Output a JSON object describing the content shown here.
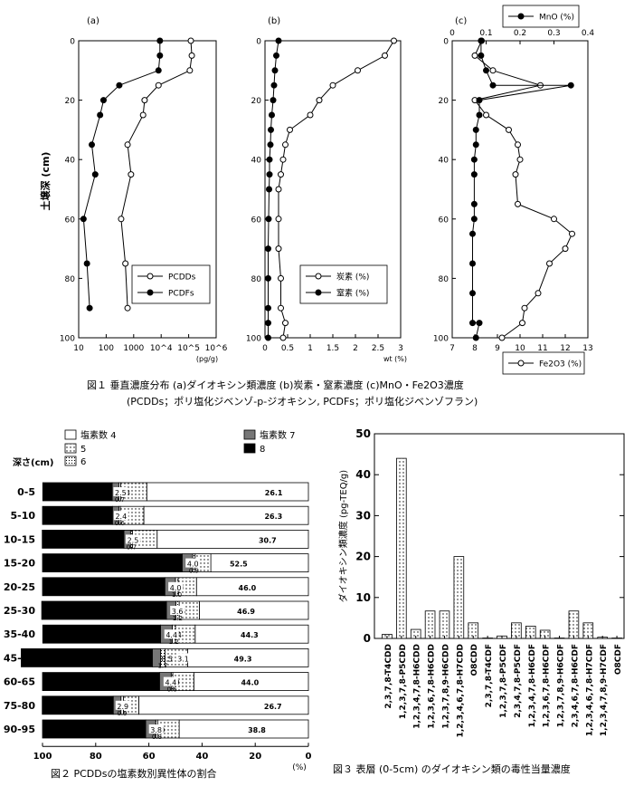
{
  "fig1": {
    "caption": "図１ 垂直濃度分布 (a)ダイオキシン類濃度 (b)炭素・窒素濃度 (c)MnO・Fe2O3濃度",
    "caption2": "(PCDDs；ポリ塩化ジベンゾ-p-ジオキシン, PCDFs；ポリ塩化ジベンゾフラン)",
    "ylabel": "土壌深 (cm)",
    "depth_ticks": [
      "0",
      "20",
      "40",
      "60",
      "80",
      "100"
    ],
    "panel_a": {
      "label": "(a)",
      "xunit": "(pg/g)"
    },
    "panel_b": {
      "label": "(b)",
      "xunit": "wt (%)"
    },
    "panel_c": {
      "label": "(c)"
    }
  },
  "fig2": {
    "caption": "図２ PCDDsの塩素数別異性体の割合",
    "depth_header": "深さ(cm)",
    "pct_unit": "(%)",
    "legend": [
      {
        "key": "cl4",
        "label": "塩素数 4"
      },
      {
        "key": "cl5",
        "label": "5"
      },
      {
        "key": "cl6",
        "label": "6"
      },
      {
        "key": "cl7",
        "label": "塩素数 7"
      },
      {
        "key": "cl8",
        "label": "8"
      }
    ]
  },
  "fig3": {
    "caption": "図３ 表層 (0-5cm) のダイオキシン類の毒性当量濃度",
    "ylabel": "ダイオキシン類濃度 (pg-TEQ/g)"
  },
  "chart_data": [
    {
      "type": "line",
      "id": "fig1a",
      "xscale": "log",
      "xlim": [
        10,
        1000000
      ],
      "xticks": [
        10,
        100,
        1000,
        10000,
        100000,
        1000000
      ],
      "xticklabels": [
        "10",
        "100",
        "1000",
        "10^4",
        "10^5",
        "10^6"
      ],
      "ylim": [
        0,
        100
      ],
      "yinverted": true,
      "xlabel": "(pg/g)",
      "ylabel": "土壌深 (cm)",
      "legend_position": "bottom-right",
      "series": [
        {
          "name": "PCDDs",
          "marker": "open",
          "points": [
            [
              120000,
              0
            ],
            [
              130000,
              5
            ],
            [
              110000,
              10
            ],
            [
              8000,
              15
            ],
            [
              2500,
              20
            ],
            [
              2200,
              25
            ],
            [
              600,
              35
            ],
            [
              800,
              45
            ],
            [
              350,
              60
            ],
            [
              500,
              75
            ],
            [
              600,
              90
            ]
          ]
        },
        {
          "name": "PCDFs",
          "marker": "filled",
          "points": [
            [
              9000,
              0
            ],
            [
              9000,
              5
            ],
            [
              8000,
              10
            ],
            [
              300,
              15
            ],
            [
              80,
              20
            ],
            [
              60,
              25
            ],
            [
              30,
              35
            ],
            [
              40,
              45
            ],
            [
              15,
              60
            ],
            [
              20,
              75
            ],
            [
              25,
              90
            ]
          ]
        }
      ]
    },
    {
      "type": "line",
      "id": "fig1b",
      "xlim": [
        0,
        3
      ],
      "xticks": [
        0,
        0.5,
        1,
        1.5,
        2,
        2.5,
        3
      ],
      "xticklabels": [
        "0",
        "0.5",
        "1",
        "1.5",
        "2",
        "2.5",
        "3"
      ],
      "ylim": [
        0,
        100
      ],
      "yinverted": true,
      "xlabel": "wt (%)",
      "legend_position": "bottom-right",
      "series": [
        {
          "name": "炭素 (%)",
          "marker": "open",
          "points": [
            [
              2.85,
              0
            ],
            [
              2.65,
              5
            ],
            [
              2.05,
              10
            ],
            [
              1.5,
              15
            ],
            [
              1.2,
              20
            ],
            [
              1.0,
              25
            ],
            [
              0.55,
              30
            ],
            [
              0.45,
              35
            ],
            [
              0.4,
              40
            ],
            [
              0.35,
              45
            ],
            [
              0.3,
              50
            ],
            [
              0.3,
              60
            ],
            [
              0.3,
              70
            ],
            [
              0.35,
              80
            ],
            [
              0.35,
              90
            ],
            [
              0.45,
              95
            ],
            [
              0.4,
              100
            ]
          ]
        },
        {
          "name": "窒素 (%)",
          "marker": "filled",
          "points": [
            [
              0.3,
              0
            ],
            [
              0.25,
              5
            ],
            [
              0.22,
              10
            ],
            [
              0.2,
              15
            ],
            [
              0.18,
              20
            ],
            [
              0.15,
              25
            ],
            [
              0.13,
              30
            ],
            [
              0.12,
              35
            ],
            [
              0.1,
              40
            ],
            [
              0.1,
              45
            ],
            [
              0.09,
              50
            ],
            [
              0.08,
              60
            ],
            [
              0.07,
              70
            ],
            [
              0.07,
              80
            ],
            [
              0.07,
              90
            ],
            [
              0.07,
              95
            ],
            [
              0.07,
              100
            ]
          ]
        }
      ]
    },
    {
      "type": "line",
      "id": "fig1c",
      "xlim_top": [
        0,
        0.4
      ],
      "xticks_top": [
        0,
        0.1,
        0.2,
        0.3,
        0.4
      ],
      "xticklabels_top": [
        "0",
        "0.1",
        "0.2",
        "0.3",
        "0.4"
      ],
      "xlim_bottom": [
        7,
        13
      ],
      "xticks_bottom": [
        7,
        8,
        9,
        10,
        11,
        12,
        13
      ],
      "xticklabels_bottom": [
        "7",
        "8",
        "9",
        "10",
        "11",
        "12",
        "13"
      ],
      "ylim": [
        0,
        100
      ],
      "yinverted": true,
      "series": [
        {
          "name": "MnO (%)",
          "axis": "top",
          "marker": "filled",
          "legend_position": "top-right",
          "points": [
            [
              0.085,
              0
            ],
            [
              0.085,
              5
            ],
            [
              0.1,
              10
            ],
            [
              0.12,
              15
            ],
            [
              0.35,
              15
            ],
            [
              0.08,
              20
            ],
            [
              0.08,
              25
            ],
            [
              0.07,
              30
            ],
            [
              0.07,
              35
            ],
            [
              0.065,
              40
            ],
            [
              0.065,
              45
            ],
            [
              0.065,
              55
            ],
            [
              0.065,
              60
            ],
            [
              0.06,
              65
            ],
            [
              0.06,
              75
            ],
            [
              0.06,
              85
            ],
            [
              0.06,
              95
            ],
            [
              0.08,
              95
            ],
            [
              0.07,
              100
            ]
          ]
        },
        {
          "name": "Fe2O3 (%)",
          "axis": "bottom",
          "marker": "open",
          "legend_position": "bottom-right",
          "points": [
            [
              8.3,
              0
            ],
            [
              8.0,
              5
            ],
            [
              8.8,
              10
            ],
            [
              10.9,
              15
            ],
            [
              8.0,
              20
            ],
            [
              8.5,
              25
            ],
            [
              9.5,
              30
            ],
            [
              9.9,
              35
            ],
            [
              10.0,
              40
            ],
            [
              9.8,
              45
            ],
            [
              9.9,
              55
            ],
            [
              11.5,
              60
            ],
            [
              12.3,
              65
            ],
            [
              12.0,
              70
            ],
            [
              11.3,
              75
            ],
            [
              10.8,
              85
            ],
            [
              10.2,
              90
            ],
            [
              10.1,
              95
            ],
            [
              9.2,
              100
            ]
          ]
        }
      ]
    },
    {
      "type": "bar",
      "orientation": "horizontal",
      "stacked": true,
      "id": "fig2",
      "xlim": [
        100,
        0
      ],
      "xticks": [
        100,
        80,
        60,
        40,
        20,
        0
      ],
      "xticklabels": [
        "100",
        "80",
        "60",
        "40",
        "20",
        "0"
      ],
      "xlabel": "(%)",
      "categories": [
        "0-5",
        "5-10",
        "10-15",
        "15-20",
        "20-25",
        "25-30",
        "35-40",
        "45-50",
        "60-65",
        "75-80",
        "90-95"
      ],
      "series": [
        {
          "name": "塩素数 4",
          "values": [
            60.8,
            61.9,
            56.9,
            36.7,
            42.1,
            41.0,
            42.6,
            45.4,
            43.1,
            63.8,
            48.6
          ],
          "labels": [
            "60.8",
            "61.9",
            "56.9",
            "36.7",
            "42.1",
            "41.0",
            "42.6",
            "45.4",
            "43.1",
            "63.8",
            "48.6"
          ]
        },
        {
          "name": "5",
          "values": [
            9.8,
            8.8,
            9.3,
            5.9,
            6.9,
            7.6,
            7.4,
            8.5,
            7.9,
            5.8,
            8.0
          ],
          "labels": [
            "9.8",
            "8.8",
            "9.3",
            "5.9",
            "6.9",
            "7.6",
            "7.4",
            "8.5",
            "7.9",
            "5.8",
            "8.0"
          ]
        },
        {
          "name": "6",
          "values": [
            0.7,
            0.6,
            0.7,
            0.9,
            1.0,
            1.2,
            1.2,
            1.7,
            0.6,
            0.9,
            0.8
          ],
          "labels": [
            "0.7",
            "0.6",
            "0.7",
            "0.9",
            "1.0",
            "1.2",
            "1.2",
            "1.7",
            "0.6",
            "0.9",
            "0.8"
          ]
        },
        {
          "name": "塩素数 7",
          "values": [
            2.5,
            2.4,
            2.5,
            4.0,
            4.0,
            3.6,
            4.4,
            3.1,
            4.4,
            2.9,
            3.8
          ],
          "labels": [
            "2.5",
            "2.4",
            "2.5",
            "4.0",
            "4.0",
            "3.6",
            "4.4",
            "3.1",
            "4.4",
            "2.9",
            "3.8"
          ]
        },
        {
          "name": "8",
          "values": [
            26.1,
            26.3,
            30.7,
            52.5,
            46.0,
            46.9,
            44.3,
            49.3,
            44.0,
            26.7,
            38.8
          ],
          "labels": [
            "26.1",
            "26.3",
            "30.7",
            "52.5",
            "46.0",
            "46.9",
            "44.3",
            "49.3",
            "44.0",
            "26.7",
            "38.8"
          ]
        }
      ]
    },
    {
      "type": "bar",
      "id": "fig3",
      "ylim": [
        0,
        50
      ],
      "yticks": [
        0,
        10,
        20,
        30,
        40,
        50
      ],
      "ylabel": "ダイオキシン類濃度 (pg-TEQ/g)",
      "categories": [
        "2,3,7,8-T4CDD",
        "1,2,3,7,8-P5CDD",
        "1,2,3,4,7,8-H6CDD",
        "1,2,3,6,7,8-H6CDD",
        "1,2,3,7,8,9-H6CDD",
        "1,2,3,4,6,7,8-H7CDD",
        "O8CDD",
        "2,3,7,8-T4CDF",
        "1,2,3,7,8-P5CDF",
        "2,3,4,7,8-P5CDF",
        "1,2,3,4,7,8-H6CDF",
        "1,2,3,6,7,8-H6CDF",
        "1,2,3,7,8,9-H6CDF",
        "2,3,4,6,7,8-H6CDF",
        "1,2,3,4,6,7,8-H7CDF",
        "1,2,3,4,7,8,9-H7CDF",
        "O8CDF"
      ],
      "values": [
        1.0,
        44.0,
        2.2,
        6.7,
        6.7,
        20.0,
        3.8,
        0.1,
        0.6,
        3.8,
        3.0,
        2.0,
        0.1,
        6.7,
        3.8,
        0.3,
        0.1
      ]
    }
  ]
}
